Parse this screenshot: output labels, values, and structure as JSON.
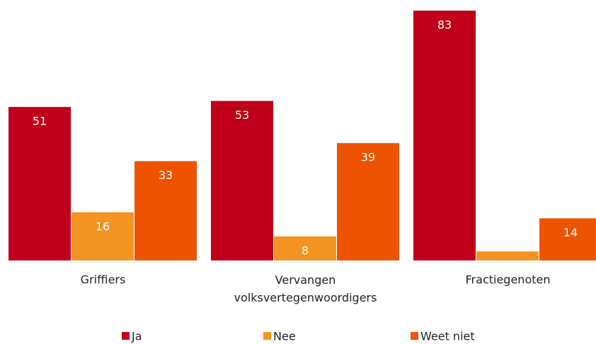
{
  "chart_data": {
    "type": "bar",
    "categories": [
      "Griffiers",
      "Vervangen volksvertegenwoordigers",
      "Fractiegenoten"
    ],
    "series": [
      {
        "name": "Ja",
        "color": "#c0001a",
        "values": [
          51,
          53,
          83
        ]
      },
      {
        "name": "Nee",
        "color": "#f39322",
        "values": [
          16,
          8,
          3
        ]
      },
      {
        "name": "Weet niet",
        "color": "#ee5400",
        "values": [
          33,
          39,
          14
        ]
      }
    ],
    "legend": "bottom"
  }
}
